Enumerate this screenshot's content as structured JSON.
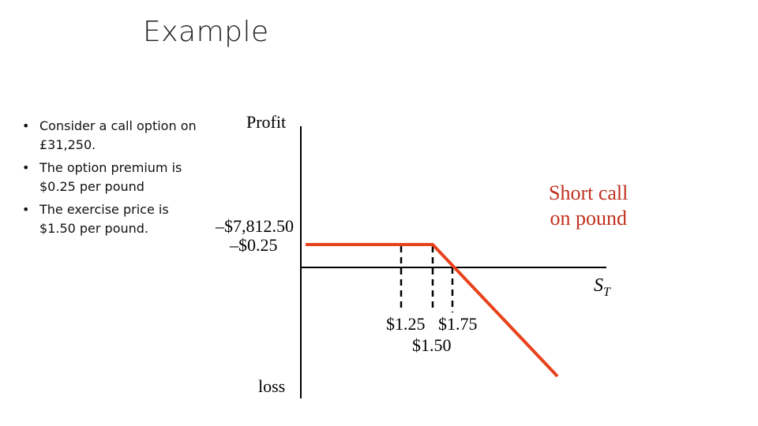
{
  "slide": {
    "title": "Example",
    "bullets": [
      "Consider a call option on £31,250.",
      "The option premium is $0.25 per pound",
      "The exercise price is $1.50 per pound."
    ],
    "bullet_glyph": "•"
  },
  "diagram": {
    "y_axis_top_label": "Profit",
    "y_axis_bottom_label": "loss",
    "x_axis_label": "S",
    "x_axis_label_subscript": "T",
    "premium_total_label": "–$7,812.50",
    "premium_per_unit_label": "–$0.25",
    "strike_low_label": "$1.25",
    "strike_high_label": "$1.75",
    "strike_mid_label": "$1.50",
    "position_label_line1": "Short call",
    "position_label_line2": "on pound",
    "payoff_color": "#e8421b",
    "position_label_color": "#c0311f",
    "payoff": {
      "premium": 0.25,
      "exercise_price": 1.5,
      "breakeven": 1.75,
      "reference_price": 1.25
    }
  }
}
